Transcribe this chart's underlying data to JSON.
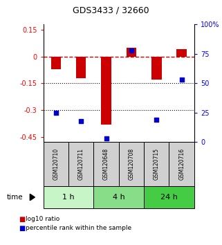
{
  "title": "GDS3433 / 32660",
  "samples": [
    "GSM120710",
    "GSM120711",
    "GSM120648",
    "GSM120708",
    "GSM120715",
    "GSM120716"
  ],
  "log10_ratio": [
    -0.07,
    -0.12,
    -0.38,
    0.05,
    -0.13,
    0.04
  ],
  "percentile_rank": [
    25,
    18,
    3,
    78,
    19,
    53
  ],
  "groups": [
    {
      "label": "1 h",
      "indices": [
        0,
        1
      ],
      "color": "#c8f5c8"
    },
    {
      "label": "4 h",
      "indices": [
        2,
        3
      ],
      "color": "#88dd88"
    },
    {
      "label": "24 h",
      "indices": [
        4,
        5
      ],
      "color": "#44cc44"
    }
  ],
  "bar_color": "#cc0000",
  "dot_color": "#0000cc",
  "ylim_left": [
    -0.48,
    0.18
  ],
  "yticks_left": [
    0.15,
    0.0,
    -0.15,
    -0.3,
    -0.45
  ],
  "yticks_left_labels": [
    "0.15",
    "0",
    "-0.15",
    "-0.3",
    "-0.45"
  ],
  "yticks_right": [
    100,
    75,
    50,
    25,
    0
  ],
  "yticks_right_labels": [
    "100%",
    "75",
    "50",
    "25",
    "0"
  ],
  "hline_zero_color": "#cc0000",
  "hline_dotted_vals": [
    -0.15,
    -0.3
  ],
  "background_color": "#ffffff",
  "label_log10": "log10 ratio",
  "label_pct": "percentile rank within the sample",
  "box_color": "#d0d0d0"
}
